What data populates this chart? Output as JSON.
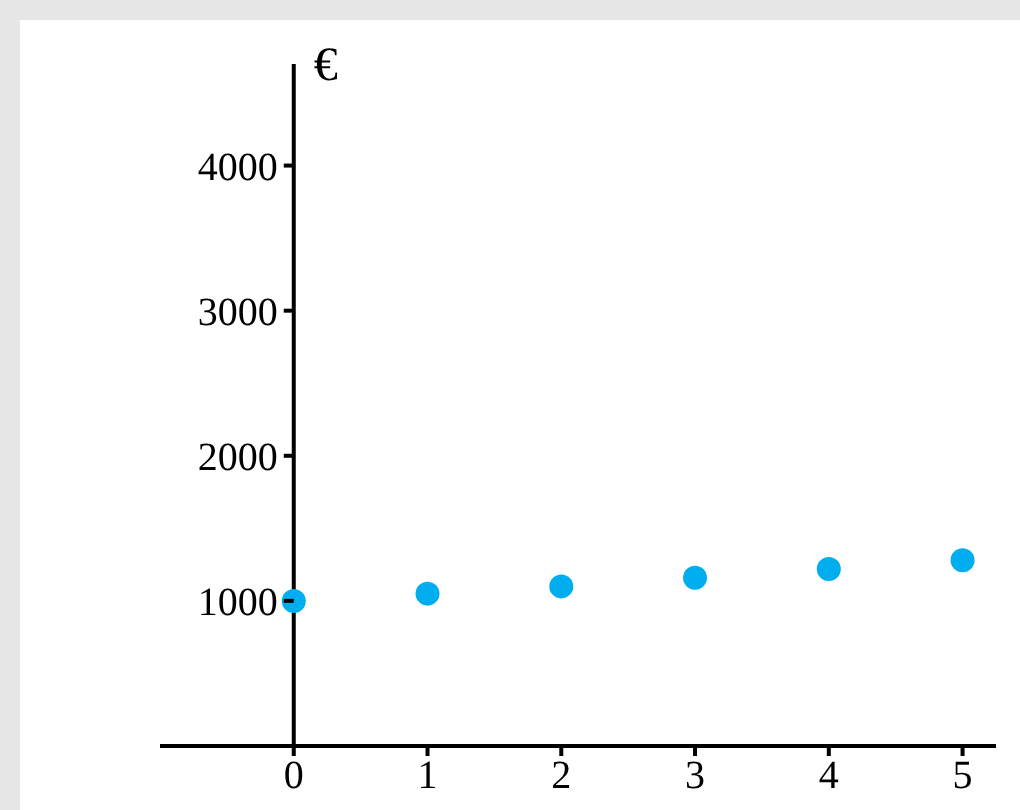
{
  "chart_data": {
    "type": "scatter",
    "ylabel": "€",
    "x": [
      0,
      1,
      2,
      3,
      4,
      5
    ],
    "series": [
      {
        "color": "#00aeef",
        "values": [
          1000,
          1050,
          1100,
          1160,
          1220,
          1280
        ]
      }
    ],
    "xlim": [
      -1,
      5.25
    ],
    "xticks": [
      0,
      1,
      2,
      3,
      4,
      5
    ],
    "ylim": [
      0,
      4700
    ],
    "yticks": [
      1000,
      2000,
      3000,
      4000
    ],
    "marker": "circle"
  }
}
